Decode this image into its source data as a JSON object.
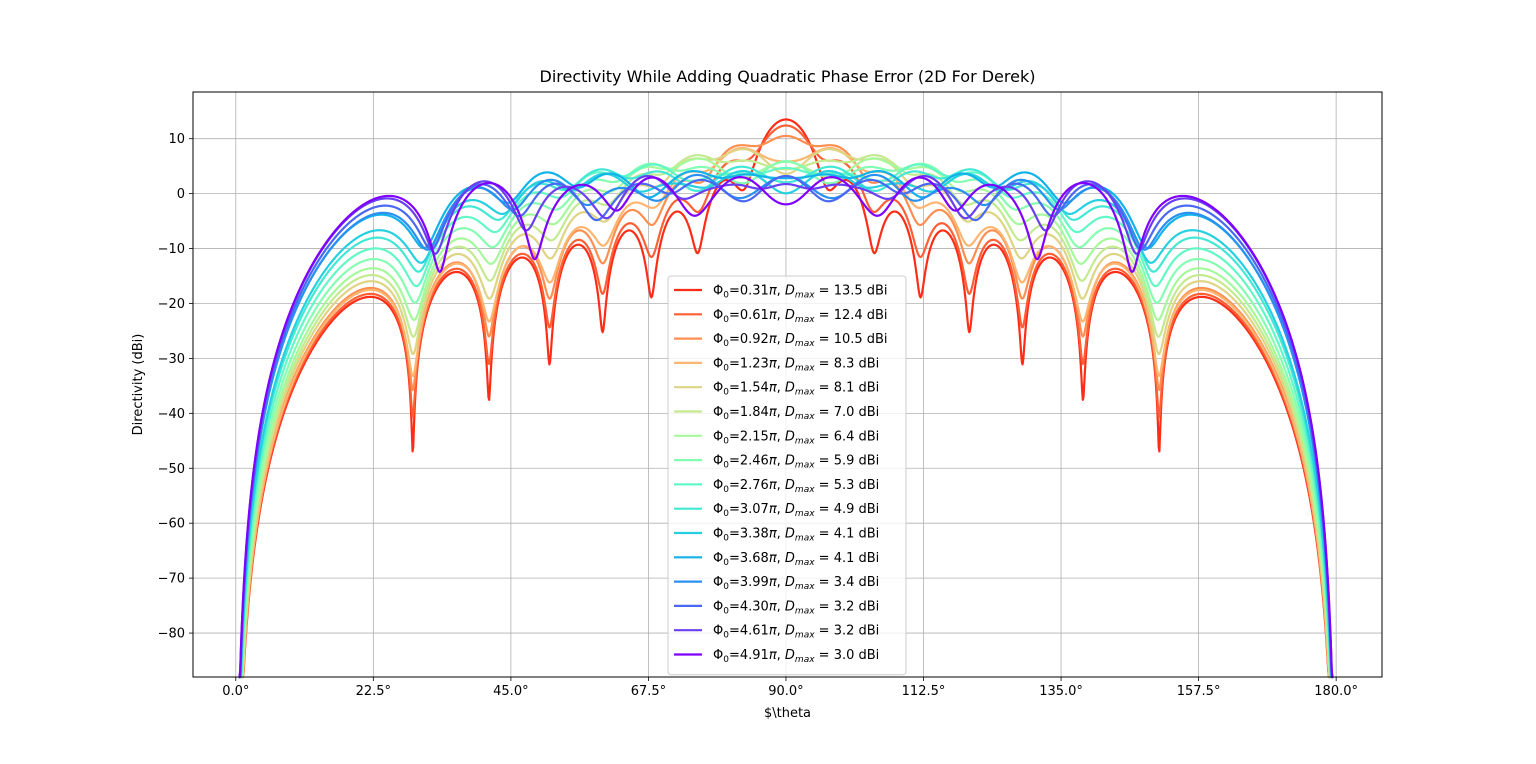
{
  "chart_data": {
    "type": "line",
    "title": "Directivity While Adding Quadratic Phase Error (2D For Derek)",
    "xlabel": "$\\theta",
    "ylabel": "Directivity (dBi)",
    "xlim": [
      -7.0,
      187.5
    ],
    "ylim": [
      -88.0,
      18.5
    ],
    "x_ticks": [
      0.0,
      22.5,
      45.0,
      67.5,
      90.0,
      112.5,
      135.0,
      157.5,
      180.0
    ],
    "x_tick_labels": [
      "0.0°",
      "22.5°",
      "45.0°",
      "67.5°",
      "90.0°",
      "112.5°",
      "135.0°",
      "157.5°",
      "180.0°"
    ],
    "y_ticks": [
      10,
      0,
      -10,
      -20,
      -30,
      -40,
      -50,
      -60,
      -70,
      -80
    ],
    "y_tick_labels": [
      "10",
      "0",
      "−10",
      "−20",
      "−30",
      "−40",
      "−50",
      "−60",
      "−70",
      "−80"
    ],
    "grid": true,
    "legend_position": "lower-center",
    "x_range": [
      0.5,
      179.5
    ],
    "series": [
      {
        "phi0": "0.31",
        "dmax": "13.5",
        "color": "#ff2d17"
      },
      {
        "phi0": "0.61",
        "dmax": "12.4",
        "color": "#ff5f35"
      },
      {
        "phi0": "0.92",
        "dmax": "10.5",
        "color": "#ff8f50"
      },
      {
        "phi0": "1.23",
        "dmax": "8.3",
        "color": "#fdb56f"
      },
      {
        "phi0": "1.54",
        "dmax": "8.1",
        "color": "#dfd483"
      },
      {
        "phi0": "1.84",
        "dmax": "7.0",
        "color": "#c3ea8f"
      },
      {
        "phi0": "2.15",
        "dmax": "6.4",
        "color": "#a5f99b"
      },
      {
        "phi0": "2.46",
        "dmax": "5.9",
        "color": "#84feb1"
      },
      {
        "phi0": "2.76",
        "dmax": "5.3",
        "color": "#62f8c6"
      },
      {
        "phi0": "3.07",
        "dmax": "4.9",
        "color": "#43e8d5"
      },
      {
        "phi0": "3.38",
        "dmax": "4.1",
        "color": "#26d0e0"
      },
      {
        "phi0": "3.68",
        "dmax": "4.1",
        "color": "#12b3ea"
      },
      {
        "phi0": "3.99",
        "dmax": "3.4",
        "color": "#2a90f2"
      },
      {
        "phi0": "4.30",
        "dmax": "3.2",
        "color": "#4a68f3"
      },
      {
        "phi0": "4.61",
        "dmax": "3.2",
        "color": "#6a3ff2"
      },
      {
        "phi0": "4.91",
        "dmax": "3.0",
        "color": "#8000ff"
      }
    ]
  }
}
